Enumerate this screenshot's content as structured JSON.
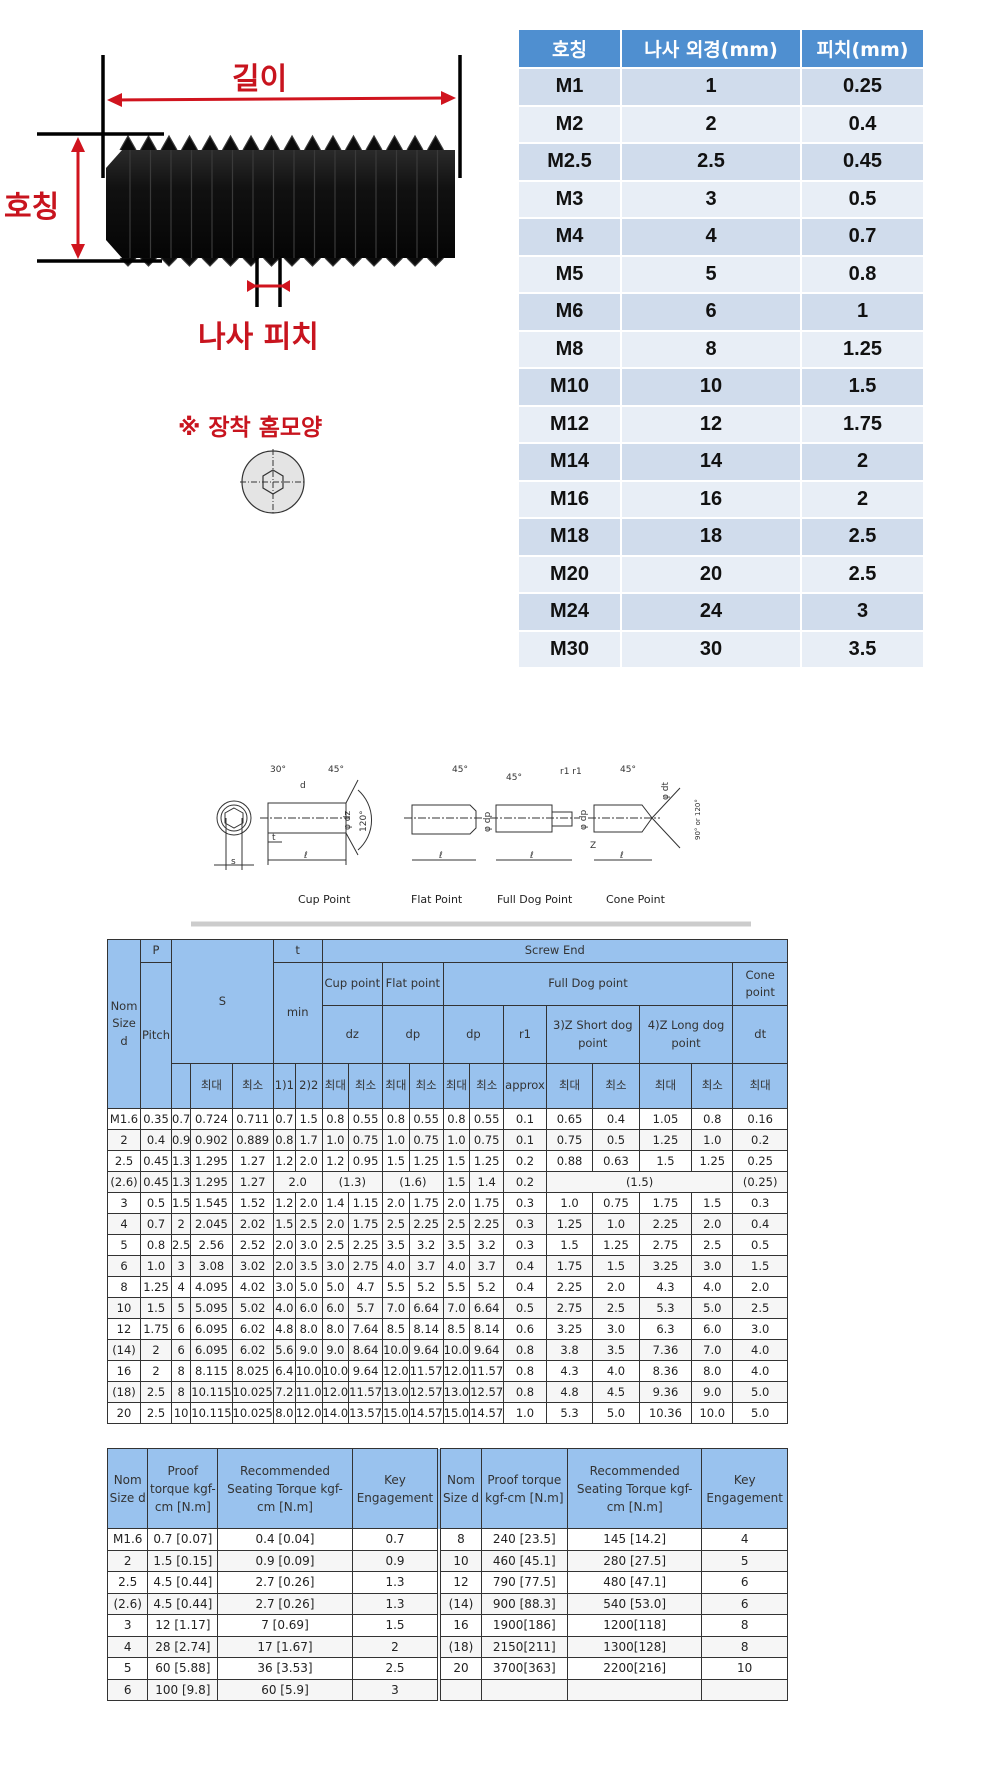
{
  "diagram": {
    "length_label": "길이",
    "nominal_label": "호칭",
    "pitch_label": "나사 피치",
    "socket_shape_label": "※ 장착 홈모양",
    "accent_color": "#c8141e"
  },
  "spec_table": {
    "headers": [
      "호칭",
      "나사 외경(mm)",
      "피치(mm)"
    ],
    "rows": [
      [
        "M1",
        "1",
        "0.25"
      ],
      [
        "M2",
        "2",
        "0.4"
      ],
      [
        "M2.5",
        "2.5",
        "0.45"
      ],
      [
        "M3",
        "3",
        "0.5"
      ],
      [
        "M4",
        "4",
        "0.7"
      ],
      [
        "M5",
        "5",
        "0.8"
      ],
      [
        "M6",
        "6",
        "1"
      ],
      [
        "M8",
        "8",
        "1.25"
      ],
      [
        "M10",
        "10",
        "1.5"
      ],
      [
        "M12",
        "12",
        "1.75"
      ],
      [
        "M14",
        "14",
        "2"
      ],
      [
        "M16",
        "16",
        "2"
      ],
      [
        "M18",
        "18",
        "2.5"
      ],
      [
        "M20",
        "20",
        "2.5"
      ],
      [
        "M24",
        "24",
        "3"
      ],
      [
        "M30",
        "30",
        "3.5"
      ]
    ],
    "header_color": "#4f8fd0"
  },
  "drawing": {
    "labels": [
      "Cup Point",
      "Flat Point",
      "Full Dog Point",
      "Cone Point"
    ],
    "annotations": {
      "s": "s",
      "t": "t",
      "l": "ℓ",
      "d": "d",
      "a30": "30°",
      "a45": "45°",
      "a120": "120°",
      "dz": "φ dz",
      "dp": "φ dp",
      "dt": "φ dt",
      "r1": "r1 r1",
      "z": "Z",
      "cone_angle": "90° or 120°"
    }
  },
  "dimension_table": {
    "header": {
      "nom": "Nom Size d",
      "p": "P",
      "s": "S",
      "t": "t",
      "screw_end": "Screw End",
      "pitch": "Pitch",
      "min": "min",
      "cup": "Cup point",
      "flat": "Flat point",
      "full_dog": "Full Dog point",
      "cone": "Cone point",
      "dz": "dz",
      "dp1": "dp",
      "dp2": "dp",
      "r1": "r1",
      "short_dog": "3)Z Short dog point",
      "long_dog": "4)Z Long dog point",
      "dt": "dt",
      "sub": [
        "",
        "최대",
        "최소",
        "1)1",
        "2)2",
        "최대",
        "최소",
        "최대",
        "최소",
        "최대",
        "최소",
        "approx",
        "최대",
        "최소",
        "최대",
        "최소",
        "최대"
      ]
    },
    "rows": [
      [
        "M1.6",
        "0.35",
        "0.7",
        "0.724",
        "0.711",
        "0.7",
        "1.5",
        "0.8",
        "0.55",
        "0.8",
        "0.55",
        "0.8",
        "0.55",
        "0.1",
        "0.65",
        "0.4",
        "1.05",
        "0.8",
        "0.16"
      ],
      [
        "2",
        "0.4",
        "0.9",
        "0.902",
        "0.889",
        "0.8",
        "1.7",
        "1.0",
        "0.75",
        "1.0",
        "0.75",
        "1.0",
        "0.75",
        "0.1",
        "0.75",
        "0.5",
        "1.25",
        "1.0",
        "0.2"
      ],
      [
        "2.5",
        "0.45",
        "1.3",
        "1.295",
        "1.27",
        "1.2",
        "2.0",
        "1.2",
        "0.95",
        "1.5",
        "1.25",
        "1.5",
        "1.25",
        "0.2",
        "0.88",
        "0.63",
        "1.5",
        "1.25",
        "0.25"
      ],
      [
        "(2.6)",
        "0.45",
        "1.3",
        "1.295",
        "1.27",
        "2.0",
        "(1.3)",
        "(1.6)",
        "1.5",
        "1.4",
        "0.2",
        "(1.5)",
        "(0.25)"
      ],
      [
        "3",
        "0.5",
        "1.5",
        "1.545",
        "1.52",
        "1.2",
        "2.0",
        "1.4",
        "1.15",
        "2.0",
        "1.75",
        "2.0",
        "1.75",
        "0.3",
        "1.0",
        "0.75",
        "1.75",
        "1.5",
        "0.3"
      ],
      [
        "4",
        "0.7",
        "2",
        "2.045",
        "2.02",
        "1.5",
        "2.5",
        "2.0",
        "1.75",
        "2.5",
        "2.25",
        "2.5",
        "2.25",
        "0.3",
        "1.25",
        "1.0",
        "2.25",
        "2.0",
        "0.4"
      ],
      [
        "5",
        "0.8",
        "2.5",
        "2.56",
        "2.52",
        "2.0",
        "3.0",
        "2.5",
        "2.25",
        "3.5",
        "3.2",
        "3.5",
        "3.2",
        "0.3",
        "1.5",
        "1.25",
        "2.75",
        "2.5",
        "0.5"
      ],
      [
        "6",
        "1.0",
        "3",
        "3.08",
        "3.02",
        "2.0",
        "3.5",
        "3.0",
        "2.75",
        "4.0",
        "3.7",
        "4.0",
        "3.7",
        "0.4",
        "1.75",
        "1.5",
        "3.25",
        "3.0",
        "1.5"
      ],
      [
        "8",
        "1.25",
        "4",
        "4.095",
        "4.02",
        "3.0",
        "5.0",
        "5.0",
        "4.7",
        "5.5",
        "5.2",
        "5.5",
        "5.2",
        "0.4",
        "2.25",
        "2.0",
        "4.3",
        "4.0",
        "2.0"
      ],
      [
        "10",
        "1.5",
        "5",
        "5.095",
        "5.02",
        "4.0",
        "6.0",
        "6.0",
        "5.7",
        "7.0",
        "6.64",
        "7.0",
        "6.64",
        "0.5",
        "2.75",
        "2.5",
        "5.3",
        "5.0",
        "2.5"
      ],
      [
        "12",
        "1.75",
        "6",
        "6.095",
        "6.02",
        "4.8",
        "8.0",
        "8.0",
        "7.64",
        "8.5",
        "8.14",
        "8.5",
        "8.14",
        "0.6",
        "3.25",
        "3.0",
        "6.3",
        "6.0",
        "3.0"
      ],
      [
        "(14)",
        "2",
        "6",
        "6.095",
        "6.02",
        "5.6",
        "9.0",
        "9.0",
        "8.64",
        "10.0",
        "9.64",
        "10.0",
        "9.64",
        "0.8",
        "3.8",
        "3.5",
        "7.36",
        "7.0",
        "4.0"
      ],
      [
        "16",
        "2",
        "8",
        "8.115",
        "8.025",
        "6.4",
        "10.0",
        "10.0",
        "9.64",
        "12.0",
        "11.57",
        "12.0",
        "11.57",
        "0.8",
        "4.3",
        "4.0",
        "8.36",
        "8.0",
        "4.0"
      ],
      [
        "(18)",
        "2.5",
        "8",
        "10.115",
        "10.025",
        "7.2",
        "11.0",
        "12.0",
        "11.57",
        "13.0",
        "12.57",
        "13.0",
        "12.57",
        "0.8",
        "4.8",
        "4.5",
        "9.36",
        "9.0",
        "5.0"
      ],
      [
        "20",
        "2.5",
        "10",
        "10.115",
        "10.025",
        "8.0",
        "12.0",
        "14.0",
        "13.57",
        "15.0",
        "14.57",
        "15.0",
        "14.57",
        "1.0",
        "5.3",
        "5.0",
        "10.36",
        "10.0",
        "5.0"
      ]
    ],
    "header_color": "#99c2ee"
  },
  "torque_table": {
    "headers": [
      "Nom Size d",
      "Proof torque kgf-cm [N.m]",
      "Recommended Seating Torque kgf-cm [N.m]",
      "Key Engagement"
    ],
    "left_rows": [
      [
        "M1.6",
        "0.7  [0.07]",
        "0.4  [0.04]",
        "0.7"
      ],
      [
        "2",
        "1.5  [0.15]",
        "0.9  [0.09]",
        "0.9"
      ],
      [
        "2.5",
        "4.5  [0.44]",
        "2.7  [0.26]",
        "1.3"
      ],
      [
        "(2.6)",
        "4.5  [0.44]",
        "2.7  [0.26]",
        "1.3"
      ],
      [
        "3",
        "12  [1.17]",
        "7  [0.69]",
        "1.5"
      ],
      [
        "4",
        "28  [2.74]",
        "17  [1.67]",
        "2"
      ],
      [
        "5",
        "60  [5.88]",
        "36  [3.53]",
        "2.5"
      ],
      [
        "6",
        "100  [9.8]",
        "60  [5.9]",
        "3"
      ]
    ],
    "right_rows": [
      [
        "8",
        "240 [23.5]",
        "145 [14.2]",
        "4"
      ],
      [
        "10",
        "460 [45.1]",
        "280 [27.5]",
        "5"
      ],
      [
        "12",
        "790 [77.5]",
        "480 [47.1]",
        "6"
      ],
      [
        "(14)",
        "900 [88.3]",
        "540 [53.0]",
        "6"
      ],
      [
        "16",
        "1900[186]",
        "1200[118]",
        "8"
      ],
      [
        "(18)",
        "2150[211]",
        "1300[128]",
        "8"
      ],
      [
        "20",
        "3700[363]",
        "2200[216]",
        "10"
      ],
      [
        "",
        "",
        "",
        ""
      ]
    ]
  }
}
